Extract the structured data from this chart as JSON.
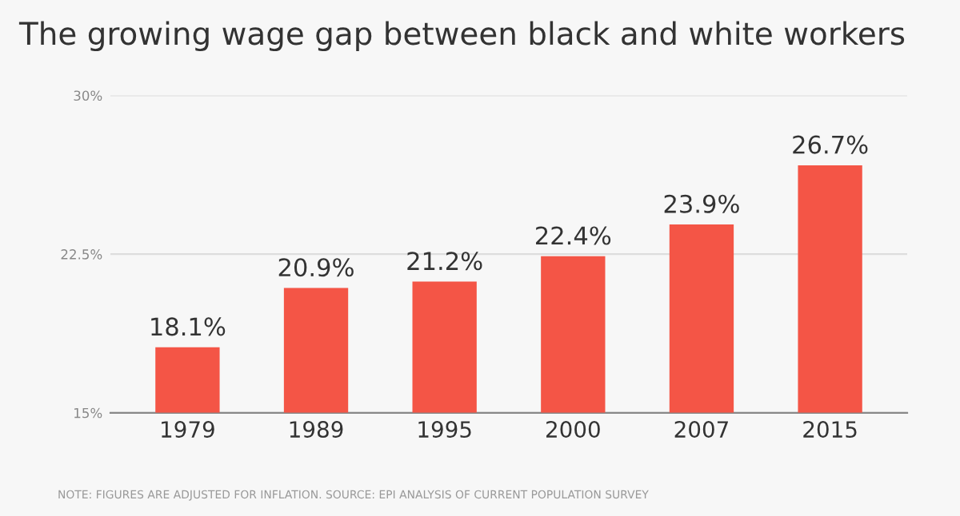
{
  "chart_data": {
    "type": "bar",
    "title": "The growing wage gap between black and white workers",
    "categories": [
      "1979",
      "1989",
      "1995",
      "2000",
      "2007",
      "2015"
    ],
    "values": [
      18.1,
      20.9,
      21.2,
      22.4,
      23.9,
      26.7
    ],
    "value_labels": [
      "18.1%",
      "20.9%",
      "21.2%",
      "22.4%",
      "23.9%",
      "26.7%"
    ],
    "color": "#f45546",
    "ylim": [
      15,
      30
    ],
    "yticks": [
      {
        "value": 15,
        "label": "15%"
      },
      {
        "value": 22.5,
        "label": "22.5%"
      },
      {
        "value": 30,
        "label": "30%"
      }
    ],
    "grid": "y",
    "annotations": [
      "NOTE: FIGURES ARE ADJUSTED FOR INFLATION. SOURCE: EPI ANALYSIS OF CURRENT POPULATION SURVEY"
    ]
  }
}
